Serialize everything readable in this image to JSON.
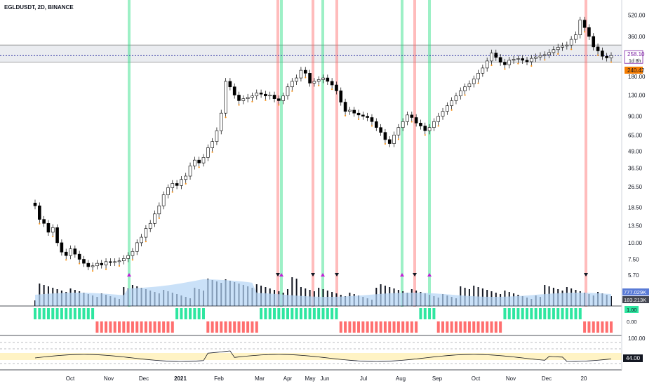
{
  "header": {
    "symbol_line": "EGLDUSDT, 2D, BINANCE"
  },
  "colors": {
    "up_candle": "#ffffff",
    "down_candle": "#000000",
    "candle_border": "#000000",
    "wick_dot": "#f7931a",
    "green_band": "#26de81",
    "red_band": "#ff6b6b",
    "volume_bar": "#131722",
    "volume_ma_area": "#b3d4f5",
    "hist_green": "#2ee6a0",
    "hist_red": "#ff6f6f",
    "rsi_line": "#131722",
    "rsi_over": "#e53935",
    "rsi_band": "#fff3c4",
    "price_line": "#2a2e9f"
  },
  "chart_data": {
    "type": "candlestick",
    "title": "EGLDUSDT, 2D, BINANCE",
    "scale": "log",
    "y_ticks": [
      "520.00",
      "360.00",
      "258.10",
      "240.42",
      "180.00",
      "130.00",
      "90.00",
      "65.00",
      "49.00",
      "36.50",
      "26.50",
      "18.50",
      "13.50",
      "10.00",
      "7.50",
      "5.70"
    ],
    "price_levels": [
      {
        "label": "258.10",
        "sublabel": "1d 8h",
        "value": 258.1,
        "color": "#7b1fa2"
      },
      {
        "label": "240.42",
        "value": 240.42,
        "color": "#f57c00"
      }
    ],
    "x_ticks": [
      "Oct",
      "Nov",
      "Dec",
      "2021",
      "Feb",
      "Mar",
      "Apr",
      "May",
      "Jun",
      "Jul",
      "Aug",
      "Sep",
      "Oct",
      "Nov",
      "Dec",
      "20"
    ],
    "zones": [
      {
        "from": 230,
        "to": 310
      }
    ],
    "signals": [
      {
        "type": "buy",
        "color": "green",
        "date": "Nov"
      },
      {
        "type": "sell",
        "color": "red",
        "date": "Mar"
      },
      {
        "type": "buy",
        "color": "green",
        "date": "Mar"
      },
      {
        "type": "sell",
        "color": "red",
        "date": "Apr"
      },
      {
        "type": "buy",
        "color": "green",
        "date": "Apr"
      },
      {
        "type": "sell",
        "color": "red",
        "date": "May"
      },
      {
        "type": "buy",
        "color": "green",
        "date": "Jul"
      },
      {
        "type": "sell",
        "color": "red",
        "date": "Jul"
      },
      {
        "type": "buy",
        "color": "green",
        "date": "Jul"
      },
      {
        "type": "sell",
        "color": "red",
        "date": "Dec"
      }
    ],
    "close_series": [
      19,
      15,
      14,
      12,
      13,
      10,
      8.5,
      8,
      9,
      8.2,
      7.5,
      7,
      6.6,
      6.7,
      7,
      6.8,
      7.2,
      7.1,
      7.2,
      7.3,
      7.6,
      8,
      8.6,
      10,
      11,
      12.8,
      14,
      16.5,
      19,
      23,
      26,
      28,
      27,
      30,
      31.8,
      38,
      42,
      40,
      44,
      52,
      58,
      70,
      95,
      165,
      150,
      130,
      118,
      122,
      125,
      128,
      135,
      132,
      128,
      130,
      122,
      118,
      128,
      150,
      165,
      175,
      200,
      190,
      160,
      165,
      170,
      175,
      165,
      155,
      140,
      115,
      98,
      100,
      95,
      92,
      90,
      88,
      82,
      74,
      68,
      60,
      56,
      65,
      74,
      82,
      92,
      88,
      80,
      76,
      70,
      74,
      82,
      90,
      98,
      108,
      118,
      128,
      140,
      150,
      158,
      172,
      190,
      208,
      235,
      270,
      250,
      230,
      220,
      238,
      242,
      245,
      238,
      232,
      246,
      252,
      258,
      262,
      272,
      286,
      298,
      305,
      310,
      342,
      370,
      478,
      420,
      360,
      300,
      280,
      255,
      248,
      258
    ],
    "volume_labels": [
      "777.029K",
      "183.213K"
    ],
    "hist_labels": [
      "1.00",
      "0.00"
    ],
    "rsi_labels": [
      "100.00",
      "44.00"
    ]
  }
}
